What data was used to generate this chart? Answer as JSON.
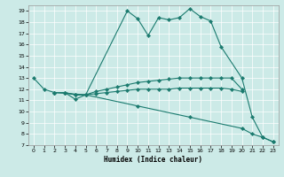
{
  "xlabel": "Humidex (Indice chaleur)",
  "bg_color": "#cceae7",
  "line_color": "#1a7a6e",
  "xlim": [
    -0.5,
    23.5
  ],
  "ylim": [
    7,
    19.5
  ],
  "yticks": [
    7,
    8,
    9,
    10,
    11,
    12,
    13,
    14,
    15,
    16,
    17,
    18,
    19
  ],
  "xticks": [
    0,
    1,
    2,
    3,
    4,
    5,
    6,
    7,
    8,
    9,
    10,
    11,
    12,
    13,
    14,
    15,
    16,
    17,
    18,
    19,
    20,
    21,
    22,
    23
  ],
  "series": [
    {
      "x": [
        0,
        1,
        2,
        3,
        4,
        5,
        9,
        10,
        11,
        12,
        13,
        14,
        15,
        16,
        17,
        18,
        20,
        21,
        22,
        23
      ],
      "y": [
        13,
        12,
        11.7,
        11.7,
        11.1,
        11.5,
        19.0,
        18.3,
        16.8,
        18.4,
        18.2,
        18.4,
        19.2,
        18.5,
        18.1,
        15.8,
        13.0,
        9.5,
        7.7,
        7.3
      ]
    },
    {
      "x": [
        2,
        3,
        4,
        5,
        6,
        7,
        8,
        9,
        10,
        11,
        12,
        13,
        14,
        15,
        16,
        17,
        18,
        19,
        20
      ],
      "y": [
        11.7,
        11.7,
        11.5,
        11.5,
        11.8,
        12.0,
        12.2,
        12.4,
        12.6,
        12.7,
        12.8,
        12.9,
        13.0,
        13.0,
        13.0,
        13.0,
        13.0,
        13.0,
        12.0
      ]
    },
    {
      "x": [
        2,
        3,
        4,
        5,
        6,
        7,
        8,
        9,
        10,
        11,
        12,
        13,
        14,
        15,
        16,
        17,
        18,
        19,
        20
      ],
      "y": [
        11.7,
        11.7,
        11.5,
        11.5,
        11.6,
        11.7,
        11.8,
        11.9,
        12.0,
        12.0,
        12.0,
        12.0,
        12.1,
        12.1,
        12.1,
        12.1,
        12.1,
        12.0,
        11.8
      ]
    },
    {
      "x": [
        2,
        5,
        10,
        15,
        20,
        21,
        22,
        23
      ],
      "y": [
        11.7,
        11.5,
        10.5,
        9.5,
        8.5,
        8.0,
        7.7,
        7.3
      ]
    }
  ]
}
